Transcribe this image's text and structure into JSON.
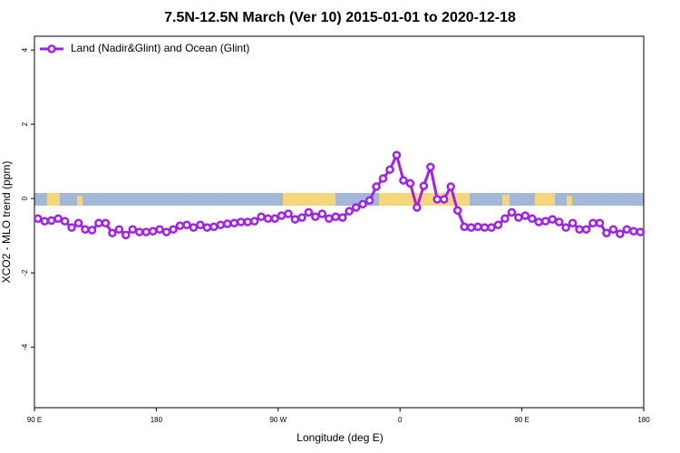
{
  "chart_data": {
    "type": "line",
    "title": "7.5N-12.5N March (Ver 10)   2015-01-01 to 2020-12-18",
    "xlabel": "Longitude (deg E)",
    "ylabel": "XCO2 - MLO trend (ppm)",
    "xlim": [
      90,
      540
    ],
    "xticks": [
      {
        "value": 90,
        "label": "90 E"
      },
      {
        "value": 180,
        "label": "180"
      },
      {
        "value": 270,
        "label": "90 W"
      },
      {
        "value": 360,
        "label": "0"
      },
      {
        "value": 450,
        "label": "90 E"
      },
      {
        "value": 540,
        "label": "180"
      }
    ],
    "ylim": [
      -5.63,
      4.37
    ],
    "yticks": [
      -4,
      -2,
      0,
      2,
      4
    ],
    "legend": "top-left",
    "x": [
      92.5,
      97.5,
      102.5,
      107.5,
      112.5,
      117.5,
      122.5,
      127.5,
      132.5,
      137.5,
      142.5,
      147.5,
      152.5,
      157.5,
      162.5,
      167.5,
      172.5,
      177.5,
      182.5,
      187.5,
      192.5,
      197.5,
      202.5,
      207.5,
      212.5,
      217.5,
      222.5,
      227.5,
      232.5,
      237.5,
      242.5,
      247.5,
      252.5,
      257.5,
      262.5,
      267.5,
      272.5,
      277.5,
      282.5,
      287.5,
      292.5,
      297.5,
      302.5,
      307.5,
      312.5,
      317.5,
      322.5,
      327.5,
      332.5,
      337.5,
      342.5,
      347.5,
      352.5,
      357.5,
      362.5,
      367.5,
      372.5,
      377.5,
      382.5,
      387.5,
      392.5,
      397.5,
      402.5,
      407.5,
      412.5,
      417.5,
      422.5,
      427.5,
      432.5,
      437.5,
      442.5,
      447.5,
      452.5,
      457.5,
      462.5,
      467.5,
      472.5,
      477.5,
      482.5,
      487.5,
      492.5,
      497.5,
      502.5,
      507.5,
      512.5,
      517.5,
      522.5,
      527.5,
      532.5,
      537.5
    ],
    "series": [
      {
        "name": "Land (Nadir&Glint) and Ocean (Glint)",
        "color": "#a020f0",
        "values": [
          -0.54,
          -0.61,
          -0.59,
          -0.54,
          -0.61,
          -0.78,
          -0.66,
          -0.83,
          -0.85,
          -0.66,
          -0.66,
          -0.93,
          -0.83,
          -0.98,
          -0.83,
          -0.9,
          -0.9,
          -0.88,
          -0.83,
          -0.9,
          -0.83,
          -0.73,
          -0.71,
          -0.78,
          -0.71,
          -0.78,
          -0.76,
          -0.71,
          -0.68,
          -0.66,
          -0.63,
          -0.63,
          -0.61,
          -0.49,
          -0.54,
          -0.54,
          -0.46,
          -0.41,
          -0.56,
          -0.51,
          -0.37,
          -0.49,
          -0.41,
          -0.54,
          -0.49,
          -0.51,
          -0.34,
          -0.24,
          -0.15,
          -0.05,
          0.32,
          0.54,
          0.78,
          1.17,
          0.49,
          0.41,
          -0.24,
          0.34,
          0.85,
          -0.02,
          -0.02,
          0.32,
          -0.32,
          -0.76,
          -0.78,
          -0.76,
          -0.78,
          -0.78,
          -0.71,
          -0.54,
          -0.37,
          -0.51,
          -0.46,
          -0.54,
          -0.63,
          -0.61,
          -0.56,
          -0.63,
          -0.78,
          -0.66,
          -0.83,
          -0.83,
          -0.66,
          -0.66,
          -0.93,
          -0.83,
          -0.95,
          -0.83,
          -0.88,
          -0.9
        ]
      }
    ]
  }
}
